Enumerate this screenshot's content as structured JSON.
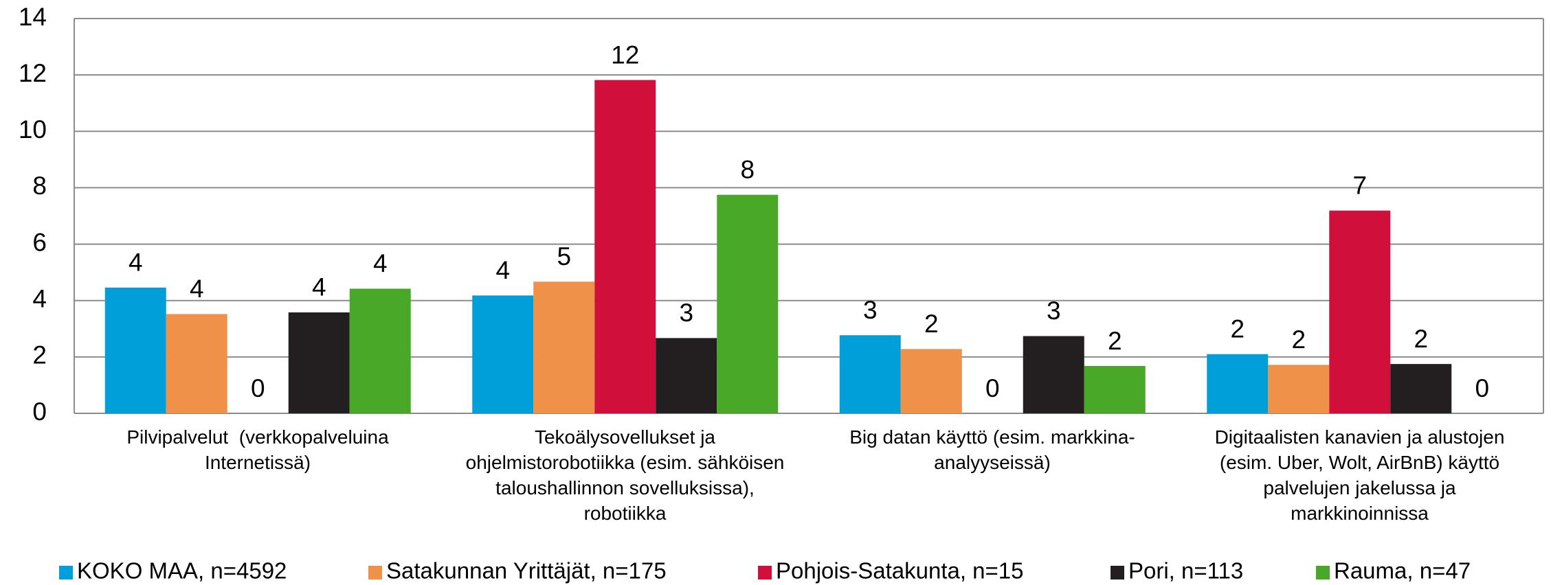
{
  "chart_data": {
    "type": "bar",
    "categories": [
      "Pilvipalvelut  (verkkopalveluina\nInternetissä)",
      "Tekoälysovellukset ja\nohjelmistorobotiikka (esim. sähköisen\ntaloushallinnon sovelluksissa),\nrobotiikka",
      "Big datan käyttö (esim. markkina-\nanalyyseissä)",
      "Digitaalisten kanavien ja alustojen\n(esim. Uber, Wolt, AirBnB) käyttö\npalvelujen jakelussa ja\nmarkkinoinnissa"
    ],
    "series": [
      {
        "name": "KOKO MAA, n=4592",
        "color": "#009fda",
        "values": [
          4.46,
          4.18,
          2.77,
          2.1
        ],
        "value_labels": [
          "4",
          "4",
          "3",
          "2"
        ]
      },
      {
        "name": "Satakunnan Yrittäjät, n=175",
        "color": "#f0914a",
        "values": [
          3.52,
          4.67,
          2.28,
          1.72
        ],
        "value_labels": [
          "4",
          "5",
          "2",
          "2"
        ]
      },
      {
        "name": "Pohjois-Satakunta, n=15",
        "color": "#d0103a",
        "values": [
          0,
          11.82,
          0,
          7.19
        ],
        "value_labels": [
          "0",
          "12",
          "0",
          "7"
        ]
      },
      {
        "name": "Pori, n=113",
        "color": "#231f20",
        "values": [
          3.58,
          2.67,
          2.74,
          1.75
        ],
        "value_labels": [
          "4",
          "3",
          "3",
          "2"
        ]
      },
      {
        "name": "Rauma, n=47",
        "color": "#4aa829",
        "values": [
          4.42,
          7.75,
          1.68,
          0
        ],
        "value_labels": [
          "4",
          "8",
          "2",
          "0"
        ]
      }
    ],
    "ylim": [
      0,
      14
    ],
    "yticks": [
      0,
      2,
      4,
      6,
      8,
      10,
      12,
      14
    ],
    "grid": true,
    "legend": "bottom"
  }
}
